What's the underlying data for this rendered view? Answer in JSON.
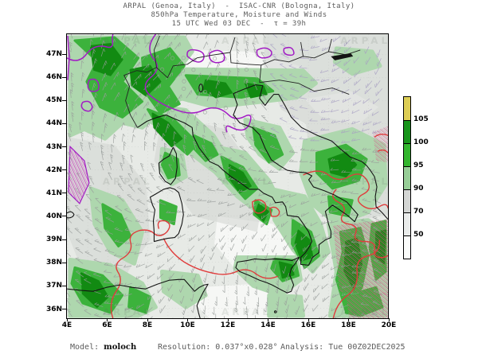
{
  "title": {
    "line1": "ARPAL (Genoa, Italy)  -  ISAC-CNR (Bologna, Italy)",
    "line2": "850hPa Temperature, Moisture and Winds",
    "line3": "15 UTC Wed 03 DEC  -  τ = 39h"
  },
  "map": {
    "lat_labels": [
      "47N",
      "46N",
      "45N",
      "44N",
      "43N",
      "42N",
      "41N",
      "40N",
      "39N",
      "38N",
      "37N",
      "36N"
    ],
    "lon_labels": [
      "4E",
      "6E",
      "8E",
      "10E",
      "12E",
      "14E",
      "16E",
      "18E",
      "20E"
    ],
    "watermark": "ARPAL"
  },
  "colorbar": {
    "tick_labels": [
      "105",
      "100",
      "95",
      "90",
      "70",
      "50"
    ],
    "segment_colors": [
      "#ddce55",
      "#18951b",
      "#33b62e",
      "#97ce97",
      "#d4d6d4",
      "#eaeceb",
      "#fbfcfb"
    ]
  },
  "footer": {
    "model_label": "Model:",
    "model_value": "moloch",
    "resolution_label": "Resolution:",
    "resolution_value": "0.037°x0.028°",
    "analysis_label": "Analysis:",
    "analysis_value": "Tue 00Z02DEC2025"
  },
  "chart_data": {
    "type": "heatmap",
    "title": "850hPa Temperature, Moisture and Winds",
    "valid_time": "15 UTC Wed 03 DEC",
    "lead_time_tau": "39h",
    "model": "moloch",
    "resolution": "0.037°x0.028°",
    "analysis": "Tue 00Z02DEC2025",
    "lon_ticks": [
      "4E",
      "6E",
      "8E",
      "10E",
      "12E",
      "14E",
      "16E",
      "18E",
      "20E"
    ],
    "lat_ticks": [
      "47N",
      "46N",
      "45N",
      "44N",
      "43N",
      "42N",
      "41N",
      "40N",
      "39N",
      "38N",
      "37N",
      "36N"
    ],
    "colorbar": {
      "tick_values": [
        105,
        100,
        95,
        90,
        70,
        50
      ],
      "colors_top_to_bottom": [
        "#ddce55",
        "#18951b",
        "#33b62e",
        "#97ce97",
        "#d4d6d4",
        "#eaeceb",
        "#fbfcfb"
      ]
    }
  }
}
